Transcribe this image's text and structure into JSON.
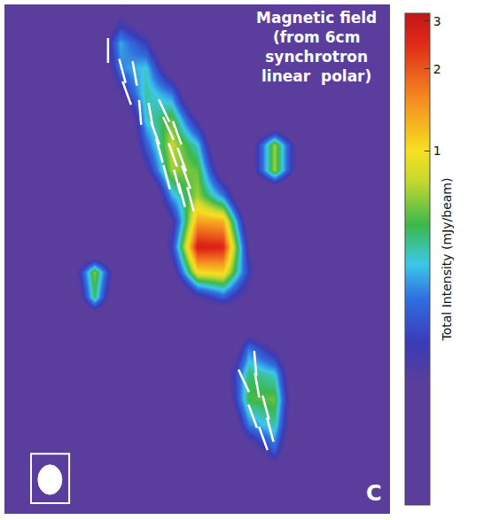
{
  "chart_data": {
    "type": "heatmap",
    "annotation": [
      "Magnetic field",
      "(from 6cm",
      "synchrotron",
      "linear  polar)"
    ],
    "colorbar_title": "Total Intensity (mJy/beam)",
    "panel_label": "C",
    "tick_labels": false,
    "log": true,
    "zlim": [
      0.05,
      3.2
    ],
    "zticks": [
      1,
      2,
      3
    ],
    "z": [
      [
        0.05,
        0.05,
        0.05,
        0.05,
        0.15,
        0.08,
        0.05,
        0.05,
        0.05,
        0.05,
        0.05,
        0.05,
        0.05,
        0.05,
        0.05
      ],
      [
        0.05,
        0.05,
        0.05,
        0.08,
        0.35,
        0.2,
        0.05,
        0.05,
        0.05,
        0.05,
        0.05,
        0.05,
        0.05,
        0.05,
        0.05
      ],
      [
        0.05,
        0.05,
        0.05,
        0.05,
        0.3,
        0.4,
        0.1,
        0.05,
        0.05,
        0.05,
        0.05,
        0.05,
        0.05,
        0.05,
        0.05
      ],
      [
        0.05,
        0.05,
        0.05,
        0.05,
        0.15,
        0.45,
        0.3,
        0.05,
        0.05,
        0.05,
        0.05,
        0.05,
        0.05,
        0.05,
        0.05
      ],
      [
        0.05,
        0.05,
        0.05,
        0.05,
        0.05,
        0.4,
        0.6,
        0.15,
        0.05,
        0.05,
        0.05,
        0.05,
        0.05,
        0.05,
        0.05
      ],
      [
        0.05,
        0.05,
        0.05,
        0.05,
        0.05,
        0.25,
        0.8,
        0.4,
        0.05,
        0.1,
        0.7,
        0.1,
        0.05,
        0.05,
        0.05
      ],
      [
        0.05,
        0.05,
        0.05,
        0.05,
        0.05,
        0.15,
        0.7,
        0.6,
        0.1,
        0.1,
        0.7,
        0.1,
        0.05,
        0.05,
        0.05
      ],
      [
        0.05,
        0.05,
        0.05,
        0.05,
        0.05,
        0.05,
        0.35,
        0.7,
        0.3,
        0.05,
        0.05,
        0.05,
        0.05,
        0.05,
        0.05
      ],
      [
        0.05,
        0.05,
        0.05,
        0.05,
        0.05,
        0.05,
        0.15,
        1.4,
        1.3,
        0.1,
        0.05,
        0.05,
        0.05,
        0.05,
        0.05
      ],
      [
        0.05,
        0.05,
        0.05,
        0.05,
        0.05,
        0.05,
        0.2,
        2.8,
        2.6,
        0.15,
        0.05,
        0.05,
        0.05,
        0.05,
        0.05
      ],
      [
        0.05,
        0.05,
        0.08,
        0.65,
        0.08,
        0.05,
        0.12,
        1.0,
        1.1,
        0.2,
        0.05,
        0.05,
        0.05,
        0.05,
        0.05
      ],
      [
        0.05,
        0.05,
        0.05,
        0.5,
        0.05,
        0.05,
        0.05,
        0.15,
        0.25,
        0.12,
        0.05,
        0.05,
        0.05,
        0.05,
        0.05
      ],
      [
        0.05,
        0.05,
        0.05,
        0.05,
        0.05,
        0.05,
        0.05,
        0.05,
        0.05,
        0.08,
        0.05,
        0.05,
        0.05,
        0.05,
        0.05
      ],
      [
        0.05,
        0.05,
        0.05,
        0.05,
        0.05,
        0.05,
        0.05,
        0.05,
        0.05,
        0.3,
        0.15,
        0.05,
        0.05,
        0.05,
        0.05
      ],
      [
        0.05,
        0.05,
        0.05,
        0.05,
        0.05,
        0.05,
        0.05,
        0.05,
        0.1,
        0.5,
        0.4,
        0.05,
        0.05,
        0.05,
        0.05
      ],
      [
        0.05,
        0.05,
        0.05,
        0.05,
        0.05,
        0.05,
        0.05,
        0.05,
        0.08,
        0.55,
        0.6,
        0.05,
        0.05,
        0.05,
        0.05
      ],
      [
        0.05,
        0.05,
        0.05,
        0.05,
        0.05,
        0.05,
        0.05,
        0.05,
        0.05,
        0.3,
        0.45,
        0.05,
        0.05,
        0.05,
        0.05
      ],
      [
        0.05,
        0.05,
        0.05,
        0.05,
        0.05,
        0.05,
        0.05,
        0.05,
        0.05,
        0.1,
        0.25,
        0.05,
        0.05,
        0.05,
        0.05
      ],
      [
        0.05,
        0.05,
        0.05,
        0.05,
        0.05,
        0.05,
        0.05,
        0.05,
        0.05,
        0.05,
        0.08,
        0.05,
        0.05,
        0.05,
        0.05
      ],
      [
        0.05,
        0.05,
        0.05,
        0.05,
        0.05,
        0.05,
        0.05,
        0.05,
        0.05,
        0.05,
        0.05,
        0.05,
        0.05,
        0.05,
        0.05
      ]
    ],
    "vectors": [
      {
        "x": 3.53,
        "y": 1.31,
        "position_angle": 0
      },
      {
        "x": 4.09,
        "y": 2.11,
        "position_angle": 15
      },
      {
        "x": 4.57,
        "y": 2.21,
        "position_angle": 10
      },
      {
        "x": 4.26,
        "y": 2.98,
        "position_angle": 20
      },
      {
        "x": 4.78,
        "y": 3.74,
        "position_angle": 5
      },
      {
        "x": 5.19,
        "y": 3.85,
        "position_angle": 10
      },
      {
        "x": 5.71,
        "y": 3.67,
        "position_angle": 25
      },
      {
        "x": 5.36,
        "y": 4.54,
        "position_angle": 20
      },
      {
        "x": 5.88,
        "y": 4.37,
        "position_angle": 25
      },
      {
        "x": 6.22,
        "y": 4.54,
        "position_angle": 20
      },
      {
        "x": 5.53,
        "y": 5.24,
        "position_angle": 15
      },
      {
        "x": 6.05,
        "y": 5.41,
        "position_angle": 20
      },
      {
        "x": 6.4,
        "y": 5.59,
        "position_angle": 20
      },
      {
        "x": 5.81,
        "y": 6.28,
        "position_angle": 15
      },
      {
        "x": 6.22,
        "y": 6.46,
        "position_angle": 15
      },
      {
        "x": 6.57,
        "y": 6.28,
        "position_angle": 20
      },
      {
        "x": 6.4,
        "y": 6.98,
        "position_angle": 15
      },
      {
        "x": 6.74,
        "y": 7.15,
        "position_angle": 15
      },
      {
        "x": 9.26,
        "y": 13.59,
        "position_angle": 5
      },
      {
        "x": 8.81,
        "y": 14.28,
        "position_angle": 25
      },
      {
        "x": 9.33,
        "y": 14.46,
        "position_angle": 10
      },
      {
        "x": 9.67,
        "y": 15.33,
        "position_angle": 15
      },
      {
        "x": 9.16,
        "y": 15.67,
        "position_angle": 20
      },
      {
        "x": 9.84,
        "y": 16.2,
        "position_angle": 15
      },
      {
        "x": 9.57,
        "y": 16.54,
        "position_angle": 20
      }
    ]
  }
}
